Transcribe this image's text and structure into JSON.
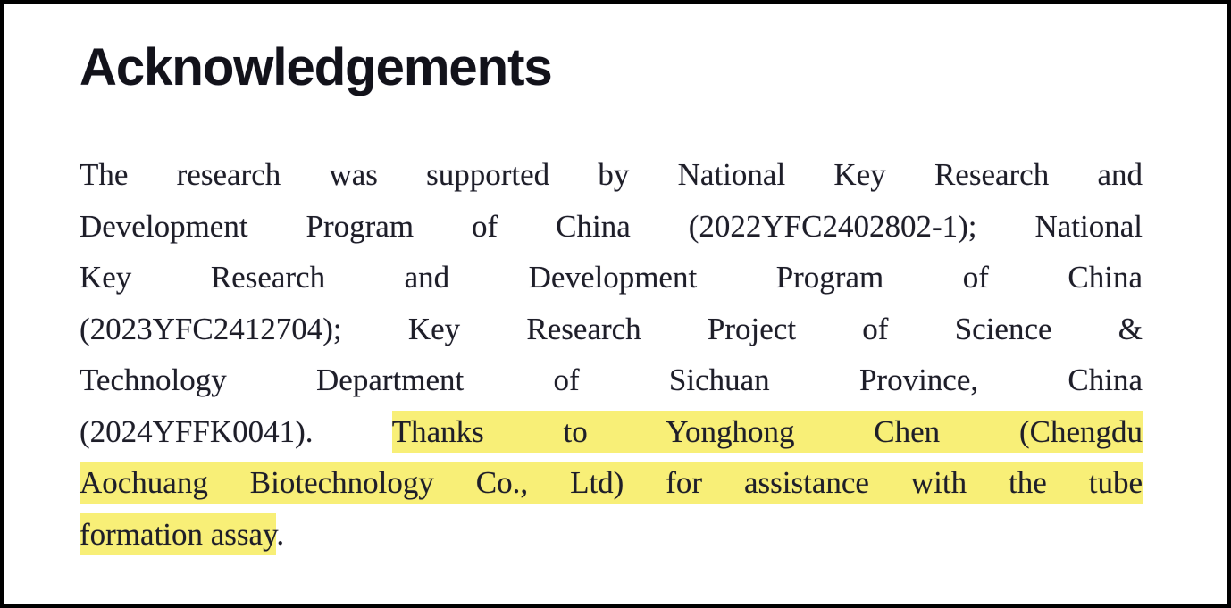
{
  "colors": {
    "paper": "#ffffff",
    "frame": "#000000",
    "heading": "#12121a",
    "ink": "#1e1e28",
    "highlight": "#f8ef77"
  },
  "heading": {
    "text": "Acknowledgements"
  },
  "paragraph": {
    "full_text": "The research was supported by National Key Research and Development Program of China (2022YFC2402802-1); National Key Research and Development Program of China (2023YFC2412704); Key Research Project of Science & Technology Department of Sichuan Province, China (2024YFFK0041). Thanks to Yonghong Chen (Chengdu Aochuang Biotechnology Co., Ltd) for assistance with the tube formation assay.",
    "highlighted_text": "Thanks to Yonghong Chen (Chengdu Aochuang Biotechnology Co., Ltd) for assistance with the tube formation assay",
    "lines": [
      {
        "justify": true,
        "segments": [
          {
            "text": "The research was supported by National Key Research and",
            "highlight": false
          }
        ]
      },
      {
        "justify": true,
        "segments": [
          {
            "text": "Development Program of China (2022YFC2402802-1); National",
            "highlight": false
          }
        ]
      },
      {
        "justify": true,
        "segments": [
          {
            "text": "Key Research and Development Program of China",
            "highlight": false
          }
        ]
      },
      {
        "justify": true,
        "segments": [
          {
            "text": "(2023YFC2412704); Key Research Project of Science &",
            "highlight": false
          }
        ]
      },
      {
        "justify": true,
        "segments": [
          {
            "text": "Technology Department of Sichuan Province, China",
            "highlight": false
          }
        ]
      },
      {
        "justify": true,
        "segments": [
          {
            "text": "(2024YFFK0041). ",
            "highlight": false
          },
          {
            "text": "Thanks to Yonghong Chen (Chengdu",
            "highlight": true
          }
        ]
      },
      {
        "justify": true,
        "segments": [
          {
            "text": "Aochuang Biotechnology Co., Ltd) for assistance with the tube",
            "highlight": true
          }
        ]
      },
      {
        "justify": false,
        "segments": [
          {
            "text": "formation assay",
            "highlight": true
          },
          {
            "text": ".",
            "highlight": false
          }
        ]
      }
    ]
  }
}
